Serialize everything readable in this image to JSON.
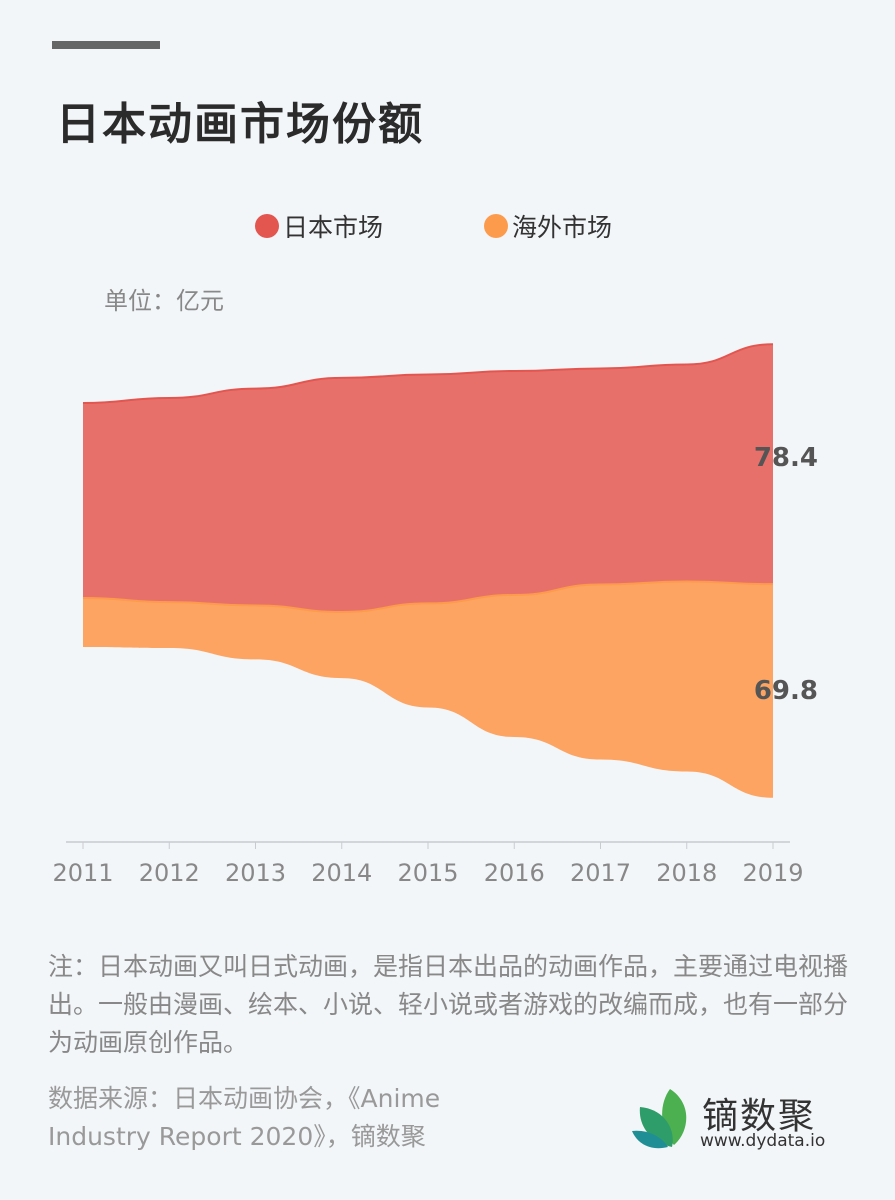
{
  "header": {
    "title": "日本动画市场份额"
  },
  "unit_label": "单位：亿元",
  "chart_data": {
    "type": "area",
    "subtype": "streamgraph",
    "categories": [
      "2011",
      "2012",
      "2013",
      "2014",
      "2015",
      "2016",
      "2017",
      "2018",
      "2019"
    ],
    "series": [
      {
        "name": "日本市场",
        "color": "#e8706b",
        "values": [
          63.7,
          66.7,
          70.9,
          76.5,
          74.8,
          73.2,
          70.6,
          70.9,
          78.4
        ]
      },
      {
        "name": "海外市场",
        "color": "#fda462",
        "values": [
          16.0,
          15.0,
          17.6,
          21.6,
          34.0,
          46.4,
          57.2,
          62.1,
          69.8
        ]
      }
    ],
    "data_labels": [
      "78.4",
      "69.8"
    ],
    "legend_position": "top",
    "grid": false
  },
  "legend": {
    "colors": [
      "#e35650",
      "#fd9b4d"
    ]
  },
  "note": "注：日本动画又叫日式动画，是指日本出品的动画作品，主要通过电视播出。一般由漫画、绘本、小说、轻小说或者游戏的改编而成，也有一部分为动画原创作品。",
  "source": "数据来源：日本动画协会，《Anime Industry Report 2020》，镝数聚",
  "logo": {
    "name": "镝数聚",
    "url": "www.dydata.io"
  }
}
